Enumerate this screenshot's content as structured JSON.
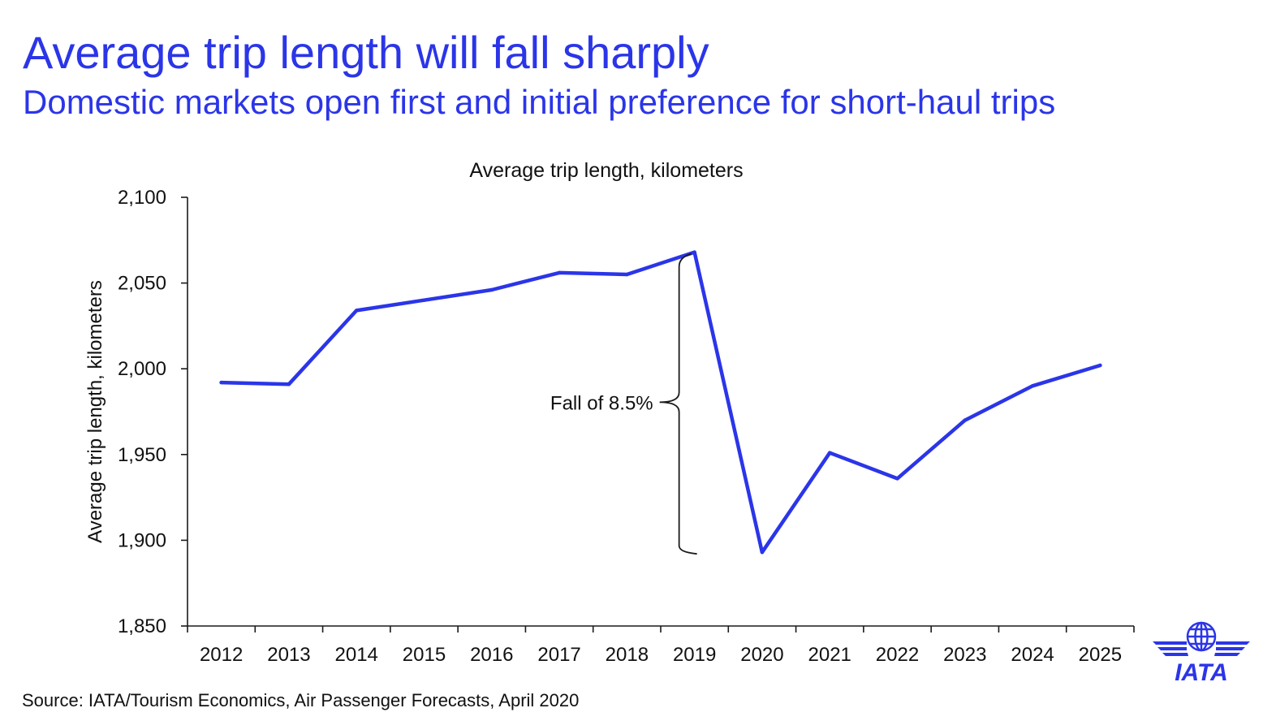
{
  "header": {
    "title": "Average trip length will fall sharply",
    "subtitle": "Domestic markets open first and initial preference for short-haul trips"
  },
  "footer": {
    "source": "Source: IATA/Tourism Economics, Air Passenger Forecasts, April 2020"
  },
  "logo": {
    "text": "IATA",
    "icon": "iata-globe-wings-logo",
    "color": "#2b35e8"
  },
  "chart_data": {
    "type": "line",
    "title": "Average trip length, kilometers",
    "xlabel": "",
    "ylabel": "Average trip length, kilometers",
    "x": [
      "2012",
      "2013",
      "2014",
      "2015",
      "2016",
      "2017",
      "2018",
      "2019",
      "2020",
      "2021",
      "2022",
      "2023",
      "2024",
      "2025"
    ],
    "series": [
      {
        "values": [
          1992,
          1991,
          2034,
          2040,
          2046,
          2056,
          2055,
          2068,
          1893,
          1951,
          1936,
          1970,
          1990,
          2002
        ],
        "color": "#2b35e8"
      }
    ],
    "ylim": [
      1850,
      2100
    ],
    "yticks": [
      1850,
      1900,
      1950,
      2000,
      2050,
      2100
    ],
    "ytick_labels": [
      "1,850",
      "1,900",
      "1,950",
      "2,000",
      "2,050",
      "2,100"
    ],
    "grid": false,
    "annotations": [
      {
        "text": "Fall of 8.5%",
        "from_x": "2019",
        "from_y": 2068,
        "to_y": 1893
      }
    ]
  }
}
